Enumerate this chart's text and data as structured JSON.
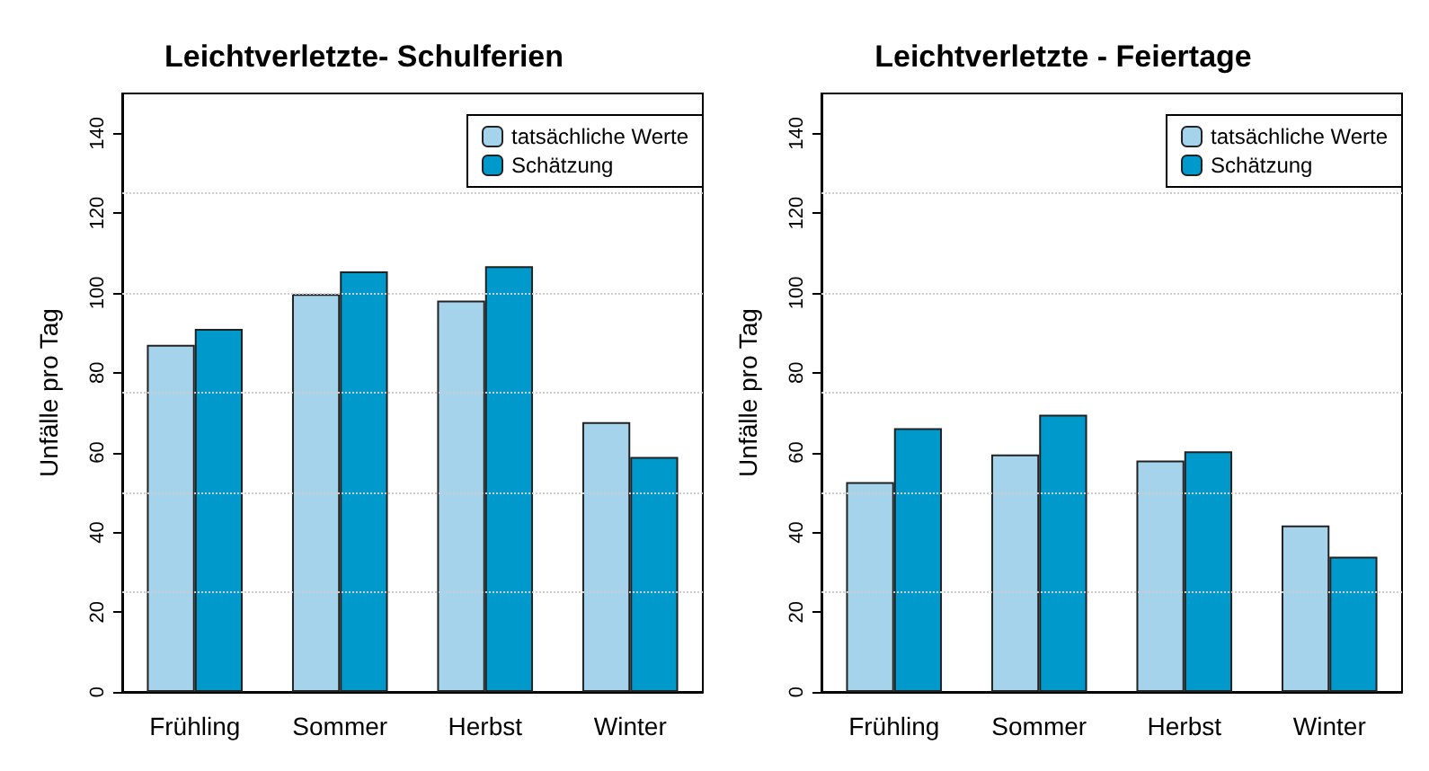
{
  "chart_data": [
    {
      "type": "bar",
      "title": "Leichtverletzte- Schulferien",
      "ylabel": "Unfälle pro Tag",
      "categories": [
        "Frühling",
        "Sommer",
        "Herbst",
        "Winter"
      ],
      "series": [
        {
          "name": "tatsächliche Werte",
          "color": "#a6d3ec",
          "values": [
            87,
            99.7,
            98.1,
            67.6
          ]
        },
        {
          "name": "Schätzung",
          "color": "#0099cc",
          "values": [
            91,
            105.4,
            106.7,
            58.9
          ]
        }
      ],
      "ylim": [
        0,
        150
      ],
      "yticks": [
        0,
        20,
        40,
        60,
        80,
        100,
        120,
        140
      ],
      "grid": false,
      "legend": "top right",
      "ref_lines": [
        {
          "axis": "y",
          "value": 25,
          "color": "#cccccc",
          "line_style": "dotted"
        },
        {
          "axis": "y",
          "value": 50,
          "color": "#cccccc",
          "line_style": "dotted"
        },
        {
          "axis": "y",
          "value": 75,
          "color": "#cccccc",
          "line_style": "dotted"
        },
        {
          "axis": "y",
          "value": 100,
          "color": "#cccccc",
          "line_style": "dotted"
        },
        {
          "axis": "y",
          "value": 125,
          "color": "#cccccc",
          "line_style": "dotted"
        }
      ]
    },
    {
      "type": "bar",
      "title": "Leichtverletzte - Feiertage",
      "ylabel": "Unfälle pro Tag",
      "categories": [
        "Frühling",
        "Sommer",
        "Herbst",
        "Winter"
      ],
      "series": [
        {
          "name": "tatsächliche Werte",
          "color": "#a6d3ec",
          "values": [
            52.6,
            59.5,
            58,
            41.7
          ]
        },
        {
          "name": "Schätzung",
          "color": "#0099cc",
          "values": [
            66.1,
            69.5,
            60.3,
            33.9
          ]
        }
      ],
      "ylim": [
        0,
        150
      ],
      "yticks": [
        0,
        20,
        40,
        60,
        80,
        100,
        120,
        140
      ],
      "grid": false,
      "legend": "top right",
      "ref_lines": [
        {
          "axis": "y",
          "value": 25,
          "color": "#cccccc",
          "line_style": "dotted"
        },
        {
          "axis": "y",
          "value": 50,
          "color": "#cccccc",
          "line_style": "dotted"
        },
        {
          "axis": "y",
          "value": 75,
          "color": "#cccccc",
          "line_style": "dotted"
        },
        {
          "axis": "y",
          "value": 100,
          "color": "#cccccc",
          "line_style": "dotted"
        },
        {
          "axis": "y",
          "value": 125,
          "color": "#cccccc",
          "line_style": "dotted"
        }
      ]
    }
  ]
}
